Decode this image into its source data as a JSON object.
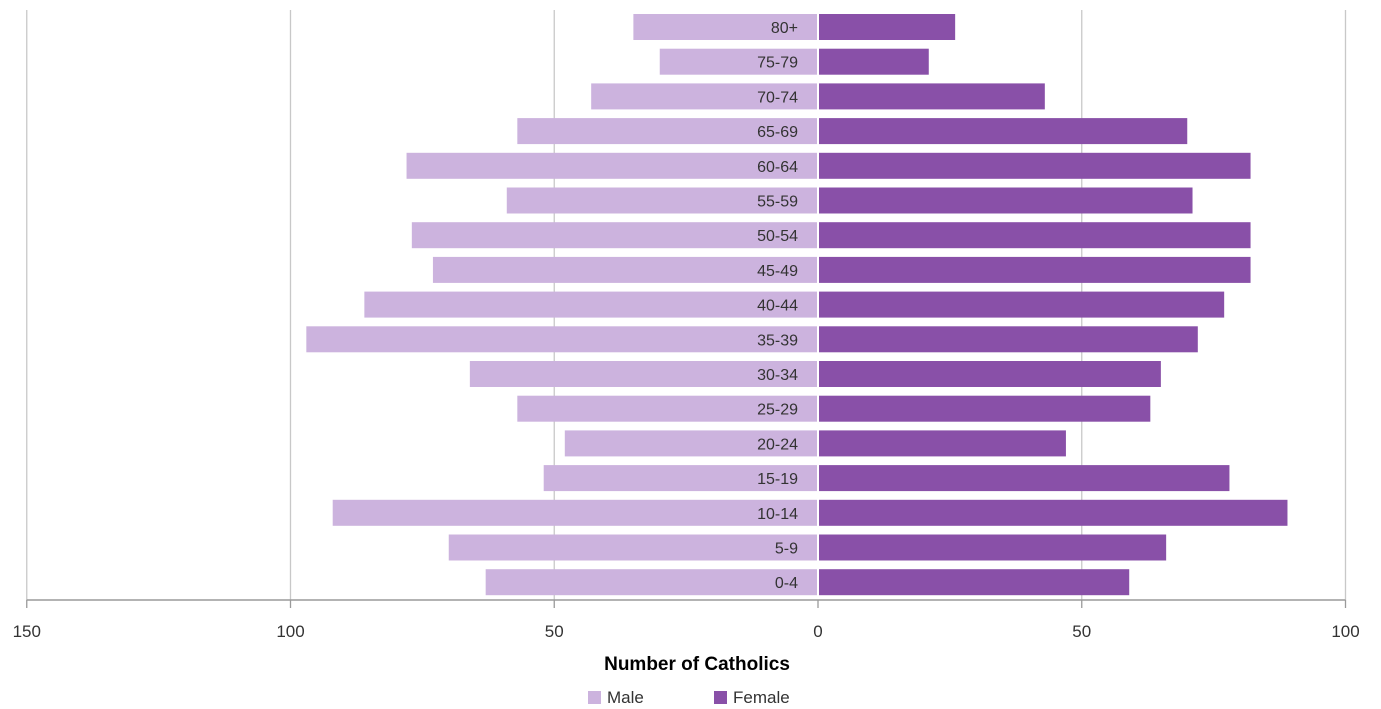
{
  "chart_data": {
    "type": "bar",
    "orientation": "horizontal",
    "layout": "population-pyramid",
    "xlabel": "Number of Catholics",
    "xlim_left": [
      150,
      0
    ],
    "xlim_right": [
      0,
      100
    ],
    "x_ticks_left": [
      "150",
      "100",
      "50",
      "0"
    ],
    "x_ticks_right": [
      "50",
      "100"
    ],
    "grid": true,
    "legend_position": "bottom",
    "categories": [
      "80+",
      "75-79",
      "70-74",
      "65-69",
      "60-64",
      "55-59",
      "50-54",
      "45-49",
      "40-44",
      "35-39",
      "30-34",
      "25-29",
      "20-24",
      "15-19",
      "10-14",
      "5-9",
      "0-4"
    ],
    "series": [
      {
        "name": "Male",
        "side": "left",
        "color": "#ccb3de",
        "values": [
          35,
          30,
          43,
          57,
          78,
          59,
          77,
          73,
          86,
          97,
          66,
          57,
          48,
          52,
          92,
          70,
          63
        ]
      },
      {
        "name": "Female",
        "side": "right",
        "color": "#8950a8",
        "values": [
          26,
          21,
          43,
          70,
          82,
          71,
          82,
          82,
          77,
          72,
          65,
          63,
          47,
          78,
          89,
          66,
          59
        ]
      }
    ]
  }
}
